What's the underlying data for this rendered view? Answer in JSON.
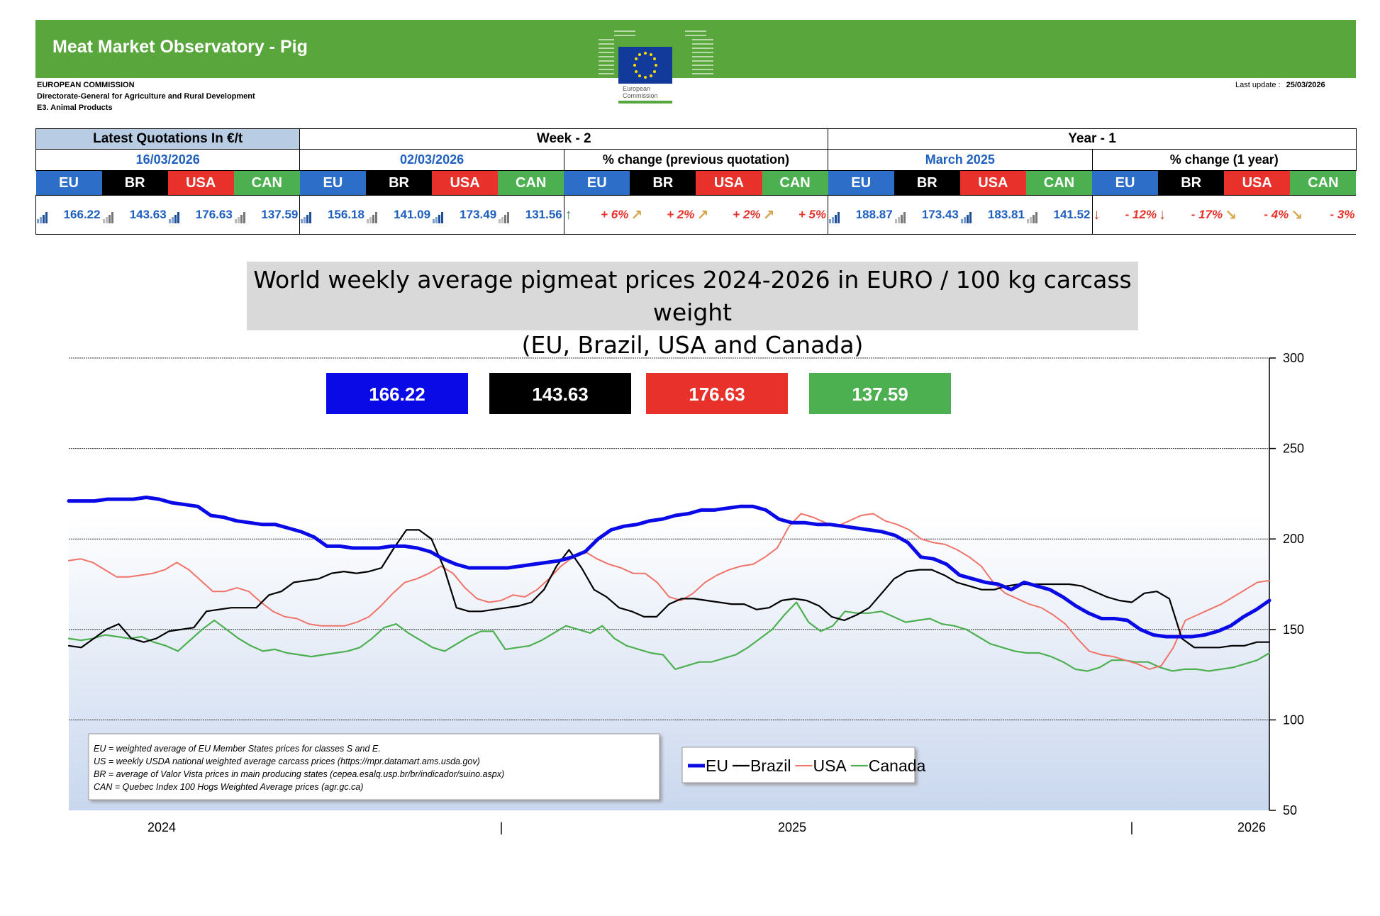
{
  "header": {
    "title": "Meat Market Observatory - Pig",
    "org": [
      "EUROPEAN COMMISSION",
      "Directorate-General for Agriculture and Rural Development",
      "E3. Animal Products"
    ],
    "logo_text": [
      "European",
      "Commission"
    ],
    "last_update_label": "Last update :",
    "last_update_value": "25/03/2026"
  },
  "colors": {
    "eu": "#2d6ec8",
    "br": "#000000",
    "usa": "#e8312b",
    "can": "#4caf50",
    "banner": "#59a63c"
  },
  "quotations": {
    "heading": "Latest Quotations In €/t",
    "week_heading": "Week - 2",
    "year_heading": "Year - 1",
    "latest_date": "16/03/2026",
    "week_date": "02/03/2026",
    "week_change_label": "% change (previous quotation)",
    "year_date": "March 2025",
    "year_change_label": "% change (1 year)",
    "regions": [
      "EU",
      "BR",
      "USA",
      "CAN"
    ],
    "latest": [
      "166.22",
      "143.63",
      "176.63",
      "137.59"
    ],
    "week": [
      "156.18",
      "141.09",
      "173.49",
      "131.56"
    ],
    "week_change": [
      "+ 6%",
      "+ 2%",
      "+ 2%",
      "+ 5%"
    ],
    "week_change_icons": [
      "up-arrow-icon",
      "up-right-arrow-icon",
      "up-right-arrow-icon",
      "up-right-arrow-icon"
    ],
    "year": [
      "188.87",
      "173.43",
      "183.81",
      "141.52"
    ],
    "year_change": [
      "- 12%",
      "- 17%",
      "- 4%",
      "- 3%"
    ],
    "year_change_icons": [
      "down-arrow-icon",
      "down-arrow-icon",
      "down-right-arrow-icon",
      "down-right-arrow-icon"
    ]
  },
  "chart_title": [
    "World weekly average pigmeat prices 2024-2026 in EURO / 100 kg carcass weight",
    "(EU, Brazil, USA and Canada)"
  ],
  "chart_data": {
    "type": "line",
    "ylim": [
      50,
      300
    ],
    "yticks": [
      "300",
      "250",
      "200",
      "150",
      "100",
      "50"
    ],
    "x_labels": [
      "2024",
      "|",
      "2025",
      "|",
      "2026"
    ],
    "value_boxes": [
      "166.22",
      "143.63",
      "176.63",
      "137.59"
    ],
    "legend_placement": "bottom-right",
    "series": [
      {
        "name": "EU",
        "color": "#0a0ae6",
        "values": [
          221,
          221,
          221,
          222,
          222,
          222,
          223,
          222,
          220,
          219,
          218,
          213,
          212,
          210,
          209,
          208,
          208,
          206,
          204,
          201,
          196,
          196,
          195,
          195,
          195,
          196,
          196,
          195,
          193,
          189,
          186,
          184,
          184,
          184,
          184,
          185,
          186,
          187,
          188,
          190,
          193,
          200,
          205,
          207,
          208,
          210,
          211,
          213,
          214,
          216,
          216,
          217,
          218,
          218,
          216,
          211,
          209,
          209,
          208,
          208,
          207,
          206,
          205,
          204,
          202,
          198,
          190,
          189,
          186,
          180,
          178,
          176,
          175,
          172,
          176,
          174,
          172,
          168,
          163,
          159,
          156,
          156,
          155,
          150,
          147,
          146,
          146,
          146,
          147,
          149,
          152,
          157,
          161,
          166
        ]
      },
      {
        "name": "Brazil",
        "color": "#000000",
        "values": [
          141,
          140,
          145,
          150,
          153,
          145,
          143,
          145,
          149,
          150,
          151,
          160,
          161,
          162,
          162,
          162,
          169,
          171,
          176,
          177,
          178,
          181,
          182,
          181,
          182,
          184,
          195,
          205,
          205,
          200,
          184,
          162,
          160,
          160,
          161,
          162,
          163,
          165,
          172,
          185,
          194,
          184,
          172,
          168,
          162,
          160,
          157,
          157,
          164,
          167,
          167,
          166,
          165,
          164,
          164,
          161,
          162,
          166,
          167,
          166,
          163,
          157,
          155,
          158,
          162,
          170,
          178,
          182,
          183,
          183,
          180,
          176,
          174,
          172,
          172,
          174,
          175,
          175,
          175,
          175,
          175,
          174,
          171,
          168,
          166,
          165,
          170,
          171,
          167,
          145,
          140,
          140,
          140,
          141,
          141,
          143,
          143
        ]
      },
      {
        "name": "USA",
        "color": "#f0736a",
        "values": [
          188,
          189,
          187,
          183,
          179,
          179,
          180,
          181,
          183,
          187,
          183,
          177,
          171,
          171,
          173,
          171,
          165,
          160,
          157,
          156,
          153,
          152,
          152,
          152,
          154,
          157,
          163,
          170,
          176,
          178,
          181,
          185,
          181,
          173,
          167,
          165,
          166,
          169,
          168,
          172,
          178,
          185,
          190,
          193,
          189,
          186,
          184,
          181,
          181,
          176,
          168,
          166,
          170,
          176,
          180,
          183,
          185,
          186,
          190,
          195,
          207,
          214,
          212,
          209,
          207,
          210,
          213,
          214,
          210,
          208,
          205,
          200,
          198,
          197,
          194,
          190,
          185,
          176,
          170,
          167,
          164,
          162,
          158,
          153,
          145,
          138,
          136,
          135,
          133,
          131,
          128,
          130,
          140,
          155,
          158,
          161,
          164,
          168,
          172,
          176,
          177
        ]
      },
      {
        "name": "Canada",
        "color": "#4caf50",
        "values": [
          145,
          144,
          145,
          147,
          146,
          145,
          146,
          143,
          141,
          138,
          144,
          150,
          155,
          150,
          145,
          141,
          138,
          139,
          137,
          136,
          135,
          136,
          137,
          138,
          140,
          145,
          151,
          153,
          148,
          144,
          140,
          138,
          142,
          146,
          149,
          149,
          139,
          140,
          141,
          144,
          148,
          152,
          150,
          148,
          152,
          145,
          141,
          139,
          137,
          136,
          128,
          130,
          132,
          132,
          134,
          136,
          140,
          145,
          150,
          158,
          165,
          154,
          149,
          152,
          160,
          159,
          159,
          160,
          157,
          154,
          155,
          156,
          153,
          152,
          150,
          146,
          142,
          140,
          138,
          137,
          137,
          135,
          132,
          128,
          127,
          129,
          133,
          133,
          132,
          132,
          129,
          127,
          128,
          128,
          127,
          128,
          129,
          131,
          133,
          137
        ]
      }
    ],
    "notes": [
      "EU    = weighted average of EU Member States prices for classes S and E.",
      "US    = weekly USDA national weighted average carcass prices (https://mpr.datamart.ams.usda.gov)",
      "BR    = average of Valor Vista prices in main producing states (cepea.esalq.usp.br/br/indicador/suino.aspx)",
      "CAN = Quebec Index 100 Hogs Weighted Average prices (agr.gc.ca)"
    ]
  }
}
